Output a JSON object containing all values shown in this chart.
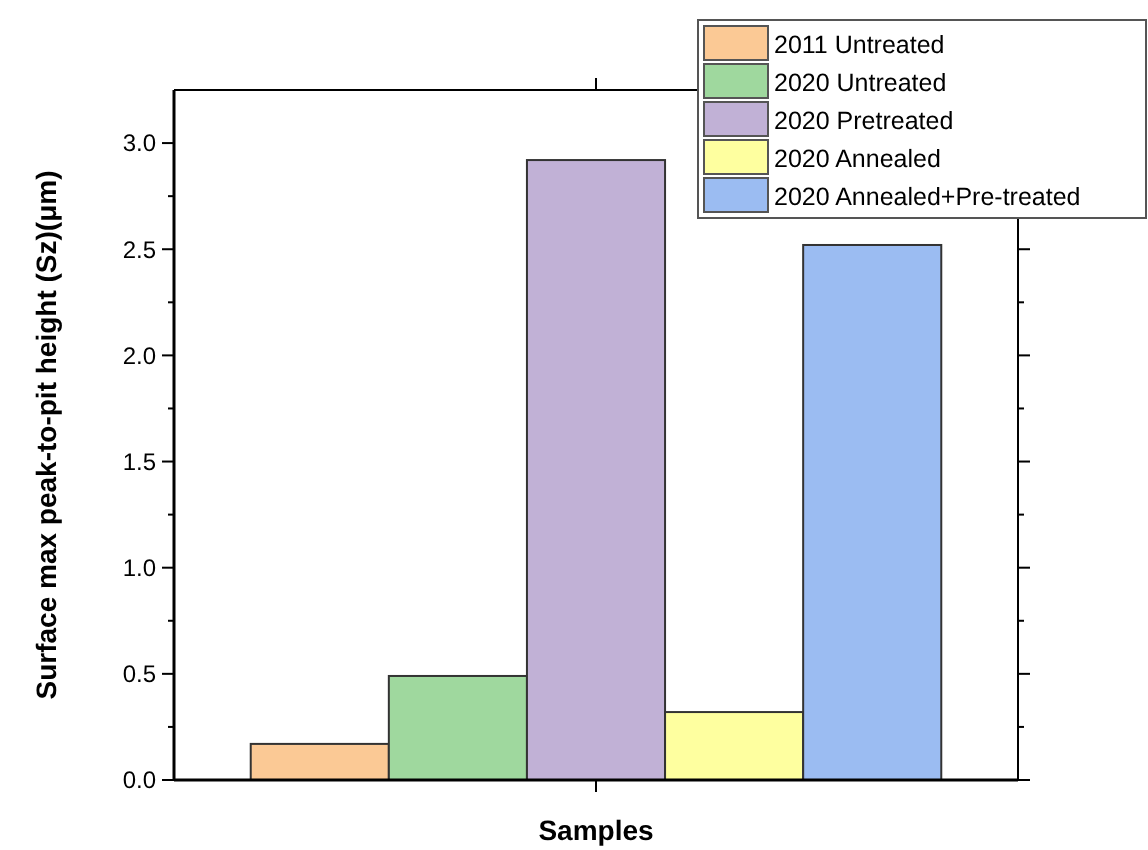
{
  "chart_data": {
    "type": "bar",
    "xlabel": "Samples",
    "ylabel": "Surface max peak-to-pit height (Sz)(μm)",
    "categories": [
      null
    ],
    "series": [
      {
        "name": "2011 Untreated",
        "color": "#fbc995",
        "values": [
          0.17
        ]
      },
      {
        "name": "2020 Untreated",
        "color": "#9fd89e",
        "values": [
          0.49
        ]
      },
      {
        "name": "2020 Pretreated",
        "color": "#c1b1d6",
        "values": [
          2.92
        ]
      },
      {
        "name": "2020 Annealed",
        "color": "#feff9f",
        "values": [
          0.32
        ]
      },
      {
        "name": "2020 Annealed+Pre-treated",
        "color": "#9bbcf2",
        "values": [
          2.52
        ]
      }
    ],
    "ylim": [
      0,
      3.25
    ],
    "yticks": [
      {
        "value": 0,
        "label": "0.0"
      },
      {
        "value": 0.25,
        "label": null
      },
      0.5,
      {
        "value": 0.75,
        "label": null
      },
      {
        "value": 1,
        "label": "1.0"
      },
      {
        "value": 1.25,
        "label": null
      },
      1.5,
      {
        "value": 1.75,
        "label": null
      },
      {
        "value": 2,
        "label": "2.0"
      },
      {
        "value": 2.25,
        "label": null
      },
      2.5,
      {
        "value": 2.75,
        "label": null
      },
      {
        "value": 3,
        "label": "3.0"
      }
    ],
    "legend": "top right"
  }
}
